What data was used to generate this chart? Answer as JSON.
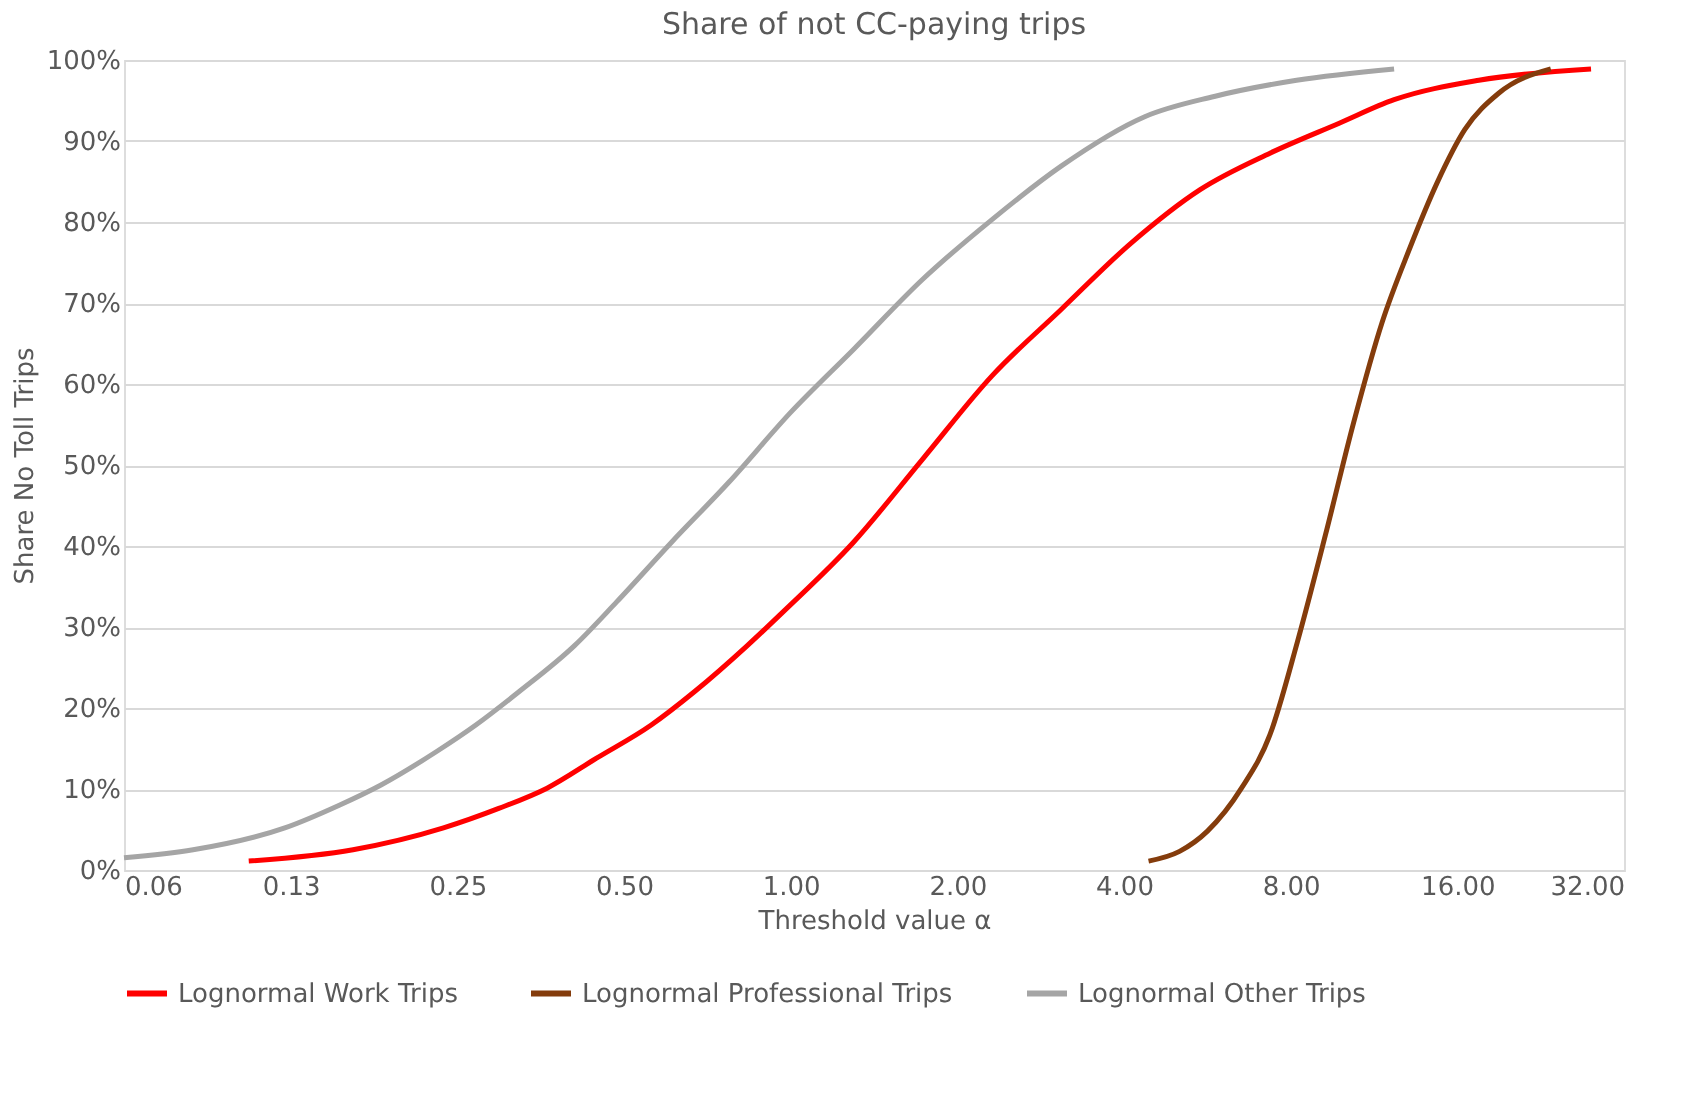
{
  "chart_data": {
    "type": "line",
    "title": "Share of not CC-paying trips",
    "xlabel": "Threshold value α",
    "ylabel": "Share No Toll Trips",
    "log": "x",
    "grid": "y",
    "legend": "bottom",
    "marker": "none",
    "line_style": "solid",
    "xlim": [
      0.0625,
      32
    ],
    "xticks": [
      {
        "value": 0.0625,
        "label": "0.06"
      },
      {
        "value": 0.125,
        "label": "0.13"
      },
      {
        "value": 0.25,
        "label": "0.25"
      },
      {
        "value": 0.5,
        "label": "0.50"
      },
      {
        "value": 1,
        "label": "1.00"
      },
      {
        "value": 2,
        "label": "2.00"
      },
      {
        "value": 4,
        "label": "4.00"
      },
      {
        "value": 8,
        "label": "8.00"
      },
      {
        "value": 16,
        "label": "16.00"
      },
      {
        "value": 32,
        "label": "32.00"
      }
    ],
    "ylim": [
      0,
      100
    ],
    "yticks": [
      {
        "value": 0,
        "label": "0%"
      },
      {
        "value": 10,
        "label": "10%"
      },
      {
        "value": 20,
        "label": "20%"
      },
      {
        "value": 30,
        "label": "30%"
      },
      {
        "value": 40,
        "label": "40%"
      },
      {
        "value": 50,
        "label": "50%"
      },
      {
        "value": 60,
        "label": "60%"
      },
      {
        "value": 70,
        "label": "70%"
      },
      {
        "value": 80,
        "label": "80%"
      },
      {
        "value": 90,
        "label": "90%"
      },
      {
        "value": 100,
        "label": "100%"
      }
    ],
    "series": [
      {
        "name": "Lognormal Work Trips",
        "color": "#ff0000",
        "x": [
          0.105,
          0.162,
          0.236,
          0.297,
          0.363,
          0.446,
          0.56,
          0.67,
          0.835,
          0.97,
          1.3,
          1.73,
          2.31,
          3.08,
          4.12,
          5.49,
          7.34,
          9.79,
          12.3,
          17.5,
          27.9
        ],
        "values": [
          1.1,
          2.5,
          5.2,
          7.6,
          10.1,
          13.8,
          17.9,
          22,
          27.7,
          31.9,
          40.5,
          50.7,
          61,
          69.2,
          77.4,
          84,
          88.5,
          92.2,
          95.1,
          97.5,
          98.9
        ]
      },
      {
        "name": "Lognormal Professional Trips",
        "color": "#843c0c",
        "x": [
          4.43,
          5.04,
          5.66,
          6.52,
          7.34,
          8.23,
          9.24,
          10.4,
          11.7,
          13.1,
          14.7,
          16.5,
          19.0,
          23.6
        ],
        "values": [
          1.1,
          2.3,
          4.8,
          10.1,
          16.7,
          28.2,
          41.3,
          55.3,
          67.6,
          76.6,
          84.8,
          91.4,
          95.9,
          98.9
        ]
      },
      {
        "name": "Lognormal Other Trips",
        "color": "#a5a5a5",
        "x": [
          0.0625,
          0.0833,
          0.122,
          0.153,
          0.182,
          0.229,
          0.27,
          0.323,
          0.407,
          0.485,
          0.61,
          0.774,
          1.0,
          1.3,
          1.73,
          2.31,
          3.08,
          4.36,
          5.82,
          8.2,
          12.3
        ],
        "values": [
          1.5,
          2.5,
          5.2,
          8,
          10.5,
          14.6,
          17.9,
          22,
          27.7,
          33.1,
          40.5,
          47.9,
          56.5,
          64.3,
          72.9,
          80.3,
          86.9,
          93,
          95.5,
          97.5,
          98.9
        ]
      }
    ]
  }
}
